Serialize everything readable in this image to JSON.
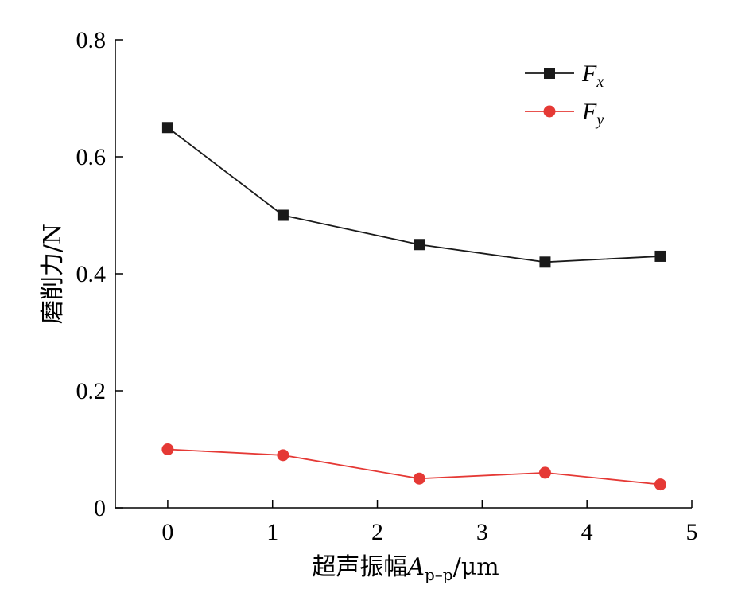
{
  "chart_data": {
    "type": "line",
    "title": "",
    "xlabel": {
      "main": "超声振幅",
      "var": "A",
      "sub": "p–p",
      "unit": "/μm"
    },
    "ylabel": "磨削力/N",
    "xlim": [
      -0.5,
      5
    ],
    "ylim": [
      0,
      0.8
    ],
    "xticks": [
      0,
      1,
      2,
      3,
      4,
      5
    ],
    "xtick_labels": [
      "0",
      "1",
      "2",
      "3",
      "4",
      "5"
    ],
    "yticks": [
      0,
      0.2,
      0.4,
      0.6,
      0.8
    ],
    "ytick_labels": [
      "0",
      "0.2",
      "0.4",
      "0.6",
      "0.8"
    ],
    "grid": false,
    "legend_position": "top-right",
    "x": [
      0,
      1.1,
      2.4,
      3.6,
      4.7
    ],
    "series": [
      {
        "name": "F",
        "sub": "x",
        "color": "#1a1a1a",
        "marker": "square",
        "values": [
          0.65,
          0.5,
          0.45,
          0.42,
          0.43
        ]
      },
      {
        "name": "F",
        "sub": "y",
        "color": "#e53935",
        "marker": "circle",
        "values": [
          0.1,
          0.09,
          0.05,
          0.06,
          0.04
        ]
      }
    ]
  }
}
